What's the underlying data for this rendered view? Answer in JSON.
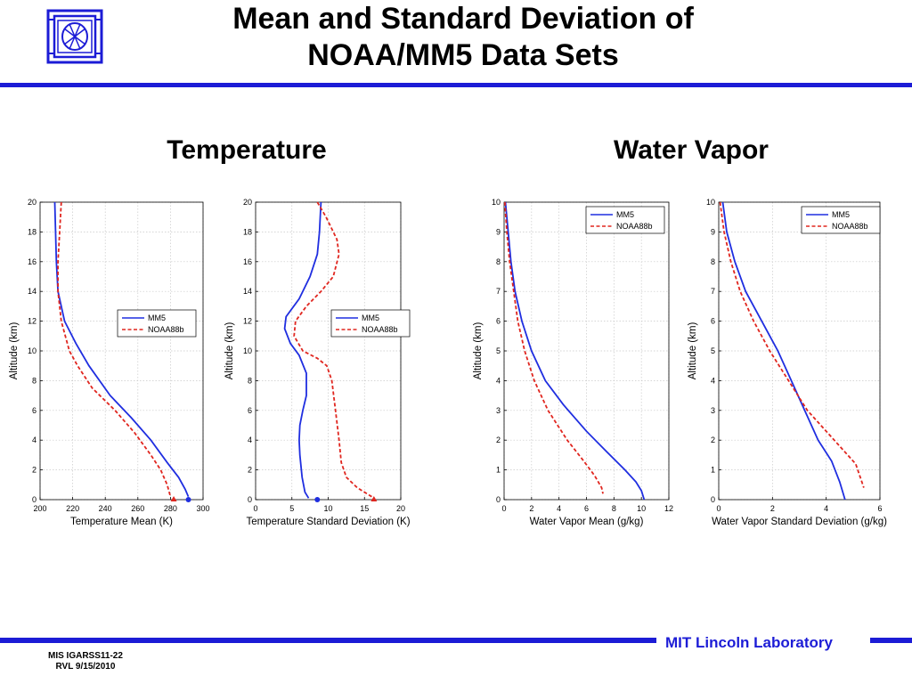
{
  "slide": {
    "title_line1": "Mean and Standard Deviation of",
    "title_line2": "NOAA/MM5 Data Sets",
    "section_temperature": "Temperature",
    "section_water_vapor": "Water Vapor",
    "footer_lab": "MIT Lincoln Laboratory",
    "footer_id_line1": "MIS IGARSS11-22",
    "footer_id_line2": "RVL 9/15/2010"
  },
  "colors": {
    "accent": "#1c1cd6",
    "mm5": "#1f2ee0",
    "noaa": "#e0261f",
    "grid": "#c8c8c8"
  },
  "chart_data": [
    {
      "type": "line",
      "xlabel": "Temperature Mean (K)",
      "ylabel": "Altitude (km)",
      "xlim": [
        200,
        300
      ],
      "ylim": [
        0,
        20
      ],
      "xticks": [
        200,
        220,
        240,
        260,
        280,
        300
      ],
      "yticks": [
        0,
        2,
        4,
        6,
        8,
        10,
        12,
        14,
        16,
        18,
        20
      ],
      "grid": true,
      "legend_position": "center-right",
      "series": [
        {
          "name": "MM5",
          "style": "solid",
          "x": [
            209,
            209.5,
            210,
            211,
            215,
            222,
            230,
            243,
            256,
            268,
            278,
            285,
            289,
            291
          ],
          "y": [
            20,
            18,
            16,
            14,
            12,
            10.5,
            9,
            7,
            5.5,
            4,
            2.5,
            1.5,
            0.7,
            0.2
          ],
          "marker": {
            "x": 291,
            "y": 0,
            "shape": "circle"
          }
        },
        {
          "name": "NOAA88b",
          "style": "dashed",
          "x": [
            213,
            212,
            211,
            211,
            213,
            218,
            223,
            232,
            246,
            258,
            268,
            274,
            278,
            280
          ],
          "y": [
            20,
            18,
            16,
            14,
            12,
            10,
            9,
            7.5,
            6,
            4.5,
            3,
            2,
            1,
            0.2
          ],
          "marker": {
            "x": 282,
            "y": 0,
            "shape": "triangle"
          }
        }
      ]
    },
    {
      "type": "line",
      "xlabel": "Temperature Standard Deviation (K)",
      "ylabel": "Altitude (km)",
      "xlim": [
        0,
        20
      ],
      "ylim": [
        0,
        20
      ],
      "xticks": [
        0,
        5,
        10,
        15,
        20
      ],
      "yticks": [
        0,
        2,
        4,
        6,
        8,
        10,
        12,
        14,
        16,
        18,
        20
      ],
      "grid": true,
      "legend_position": "center-right",
      "series": [
        {
          "name": "MM5",
          "style": "solid",
          "x": [
            9,
            8.8,
            8.5,
            7.5,
            6,
            4.2,
            4,
            4.8,
            6,
            7,
            7,
            6.5,
            6.1,
            6,
            6.1,
            6.4,
            6.8,
            7.3
          ],
          "y": [
            20,
            18,
            16.5,
            15,
            13.5,
            12.3,
            11.5,
            10.5,
            9.7,
            8.5,
            7,
            6,
            5,
            4,
            3,
            1.5,
            0.5,
            0.1
          ],
          "marker": {
            "x": 8.5,
            "y": 0,
            "shape": "circle"
          }
        },
        {
          "name": "NOAA88b",
          "style": "dashed",
          "x": [
            8.5,
            9.7,
            11.2,
            11.5,
            10.7,
            9,
            7,
            5.5,
            5.3,
            6.5,
            8.5,
            9.8,
            10.5,
            11,
            11.5,
            11.8,
            12.5,
            14,
            16
          ],
          "y": [
            20,
            19,
            17.5,
            16.5,
            15,
            14,
            13,
            12,
            11,
            10,
            9.5,
            9,
            8,
            6,
            4,
            2.5,
            1.5,
            0.8,
            0.2
          ],
          "marker": {
            "x": 16.3,
            "y": 0,
            "shape": "triangle"
          }
        }
      ]
    },
    {
      "type": "line",
      "xlabel": "Water Vapor Mean (g/kg)",
      "ylabel": "Altitude (km)",
      "xlim": [
        0,
        12
      ],
      "ylim": [
        0,
        10
      ],
      "xticks": [
        0,
        2,
        4,
        6,
        8,
        10,
        12
      ],
      "yticks": [
        0,
        1,
        2,
        3,
        4,
        5,
        6,
        7,
        8,
        9,
        10
      ],
      "grid": true,
      "legend_position": "top-right",
      "series": [
        {
          "name": "MM5",
          "style": "solid",
          "x": [
            0.1,
            0.3,
            0.5,
            0.8,
            1.3,
            2,
            3,
            4.3,
            6,
            7.5,
            8.8,
            9.6,
            10,
            10.2
          ],
          "y": [
            10,
            9,
            8,
            7,
            6,
            5,
            4,
            3.2,
            2.3,
            1.6,
            1,
            0.6,
            0.3,
            0
          ]
        },
        {
          "name": "NOAA88b",
          "style": "dashed",
          "x": [
            0.05,
            0.2,
            0.4,
            0.7,
            1,
            1.5,
            2.2,
            3.2,
            4.6,
            5.8,
            6.6,
            7.1,
            7.2
          ],
          "y": [
            10,
            9,
            8,
            7,
            6,
            5,
            4,
            3,
            2,
            1.3,
            0.8,
            0.4,
            0.2
          ]
        }
      ]
    },
    {
      "type": "line",
      "xlabel": "Water Vapor Standard Deviation (g/kg)",
      "ylabel": "Altitude (km)",
      "xlim": [
        0,
        6
      ],
      "ylim": [
        0,
        10
      ],
      "xticks": [
        0,
        2,
        4,
        6
      ],
      "yticks": [
        0,
        1,
        2,
        3,
        4,
        5,
        6,
        7,
        8,
        9,
        10
      ],
      "grid": true,
      "legend_position": "top-right",
      "series": [
        {
          "name": "MM5",
          "style": "solid",
          "x": [
            0.15,
            0.3,
            0.6,
            1,
            1.6,
            2.2,
            2.7,
            3.2,
            3.7,
            4.2,
            4.5,
            4.7
          ],
          "y": [
            10,
            9,
            8,
            7,
            6,
            5,
            4,
            3,
            2,
            1.3,
            0.6,
            0
          ]
        },
        {
          "name": "NOAA88b",
          "style": "dashed",
          "x": [
            0.05,
            0.2,
            0.45,
            0.8,
            1.3,
            1.9,
            2.6,
            3.3,
            4.3,
            5.1,
            5.4
          ],
          "y": [
            10,
            9,
            8,
            7,
            6,
            5,
            4,
            3,
            2,
            1.2,
            0.4
          ]
        }
      ]
    }
  ]
}
